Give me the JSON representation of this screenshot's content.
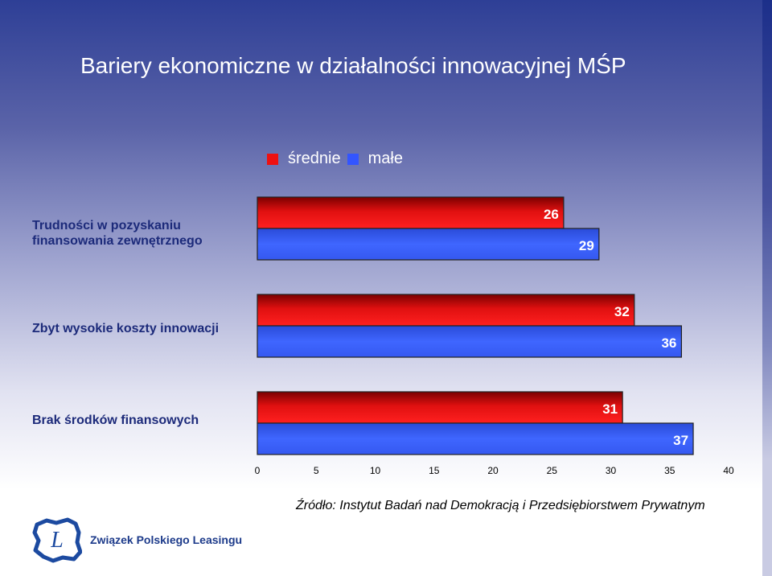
{
  "title": "Bariery ekonomiczne w działalności innowacyjnej MŚP",
  "source": "Źródło: Instytut Badań nad Demokracją i Przedsiębiorstwem Prywatnym",
  "logo_text": "Związek Polskiego Leasingu",
  "logo_letter": "L",
  "colors": {
    "srednie": "#ee1111",
    "male": "#3355ff"
  },
  "chart_data": {
    "type": "bar",
    "orientation": "horizontal",
    "categories": [
      "Trudności w pozyskaniu finansowania zewnętrznego",
      "Zbyt wysokie koszty innowacji",
      "Brak środków finansowych"
    ],
    "series": [
      {
        "name": "średnie",
        "values": [
          26,
          32,
          31
        ]
      },
      {
        "name": "małe",
        "values": [
          29,
          36,
          37
        ]
      }
    ],
    "xlim": [
      0,
      40
    ],
    "xticks": [
      0,
      5,
      10,
      15,
      20,
      25,
      30,
      35,
      40
    ],
    "legend": "top",
    "grid": false
  }
}
